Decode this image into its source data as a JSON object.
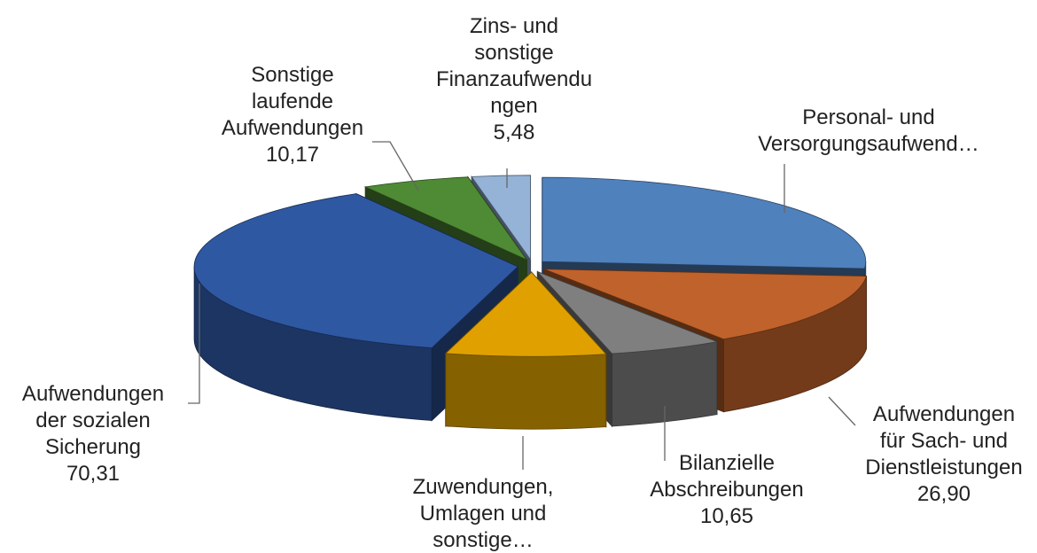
{
  "chart_data": {
    "type": "pie3d",
    "categories": [
      "Personal- und\nVersorgungsaufwend…",
      "Aufwendungen\nfür Sach- und\nDienstleistungen",
      "Bilanzielle\nAbschreibungen",
      "Zuwendungen,\nUmlagen und\nsonstige…",
      "Aufwendungen\nder sozialen\nSicherung",
      "Sonstige\nlaufende\nAufwendungen",
      "Zins- und\nsonstige\nFinanzaufwendu\nngen"
    ],
    "values": [
      49.5,
      26.9,
      10.65,
      15,
      70.31,
      10.17,
      5.48
    ],
    "value_labels": [
      null,
      "26,90",
      "10,65",
      null,
      "70,31",
      "10,17",
      "5,48"
    ],
    "colors": [
      "#4f81bd",
      "#c0622b",
      "#7f7f7f",
      "#e0a100",
      "#2f58a3",
      "#4f8a35",
      "#95b3d7"
    ]
  }
}
